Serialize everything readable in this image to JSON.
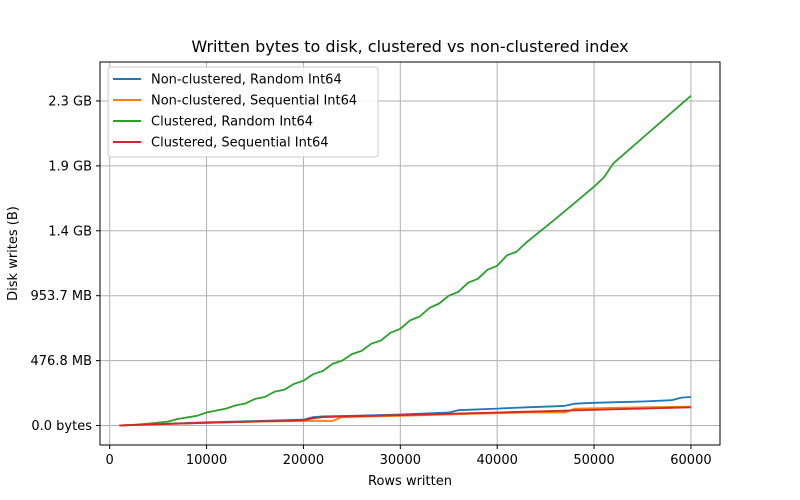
{
  "chart_data": {
    "type": "line",
    "title": "Written bytes to disk, clustered vs non-clustered index",
    "xlabel": "Rows written",
    "ylabel": "Disk writes (B)",
    "xlim": [
      -1000,
      63000
    ],
    "ylim_bytes": [
      -150000000,
      2800000000
    ],
    "x_ticks": [
      0,
      10000,
      20000,
      30000,
      40000,
      50000,
      60000
    ],
    "x_tick_labels": [
      "0",
      "10000",
      "20000",
      "30000",
      "40000",
      "50000",
      "60000"
    ],
    "y_ticks_bytes": [
      0,
      500000000,
      1000000000,
      1500000000,
      2000000000,
      2500000000
    ],
    "y_tick_labels": [
      "0.0 bytes",
      "476.8 MB",
      "953.7 MB",
      "1.4 GB",
      "1.9 GB",
      "2.3 GB"
    ],
    "grid": true,
    "legend_position": "upper-left",
    "series": [
      {
        "name": "Non-clustered, Random Int64",
        "color": "#1f77b4",
        "x": [
          1000,
          5000,
          10000,
          15000,
          20000,
          21000,
          22000,
          25000,
          30000,
          35000,
          36000,
          40000,
          43000,
          46000,
          47000,
          48000,
          50000,
          55000,
          58000,
          59000,
          60000
        ],
        "y": [
          0,
          12000000,
          25000000,
          35000000,
          45000000,
          65000000,
          70000000,
          75000000,
          85000000,
          100000000,
          118000000,
          130000000,
          140000000,
          148000000,
          152000000,
          168000000,
          175000000,
          185000000,
          195000000,
          215000000,
          220000000
        ]
      },
      {
        "name": "Non-clustered, Sequential Int64",
        "color": "#ff7f0e",
        "x": [
          1000,
          5000,
          10000,
          15000,
          20000,
          23000,
          24000,
          30000,
          35000,
          40000,
          43000,
          47000,
          48000,
          55000,
          60000
        ],
        "y": [
          0,
          10000000,
          20000000,
          30000000,
          35000000,
          35000000,
          65000000,
          75000000,
          85000000,
          95000000,
          100000000,
          100000000,
          130000000,
          140000000,
          145000000
        ]
      },
      {
        "name": "Clustered, Random Int64",
        "color": "#2ca02c",
        "x": [
          1000,
          2000,
          4000,
          6000,
          7000,
          9000,
          10000,
          12000,
          13000,
          14000,
          15000,
          16000,
          17000,
          18000,
          19000,
          20000,
          21000,
          22000,
          23000,
          24000,
          25000,
          26000,
          27000,
          28000,
          29000,
          30000,
          31000,
          32000,
          33000,
          34000,
          35000,
          36000,
          37000,
          38000,
          39000,
          40000,
          41000,
          42000,
          43000,
          44000,
          46000,
          48000,
          50000,
          51000,
          52000,
          54000,
          56000,
          58000,
          60000
        ],
        "y": [
          0,
          3000000,
          15000000,
          30000000,
          50000000,
          75000000,
          100000000,
          130000000,
          155000000,
          170000000,
          205000000,
          220000000,
          260000000,
          275000000,
          320000000,
          345000000,
          395000000,
          420000000,
          475000000,
          500000000,
          550000000,
          575000000,
          630000000,
          655000000,
          715000000,
          745000000,
          810000000,
          840000000,
          905000000,
          940000000,
          1000000000,
          1030000000,
          1100000000,
          1130000000,
          1200000000,
          1230000000,
          1310000000,
          1340000000,
          1410000000,
          1470000000,
          1590000000,
          1715000000,
          1840000000,
          1910000000,
          2020000000,
          2150000000,
          2280000000,
          2410000000,
          2540000000
        ]
      },
      {
        "name": "Clustered, Sequential Int64",
        "color": "#d62728",
        "x": [
          1000,
          5000,
          10000,
          15000,
          20000,
          21000,
          22000,
          25000,
          30000,
          35000,
          40000,
          45000,
          50000,
          55000,
          60000
        ],
        "y": [
          0,
          10000000,
          20000000,
          30000000,
          40000000,
          55000000,
          65000000,
          70000000,
          80000000,
          90000000,
          100000000,
          110000000,
          120000000,
          130000000,
          140000000
        ]
      }
    ]
  }
}
